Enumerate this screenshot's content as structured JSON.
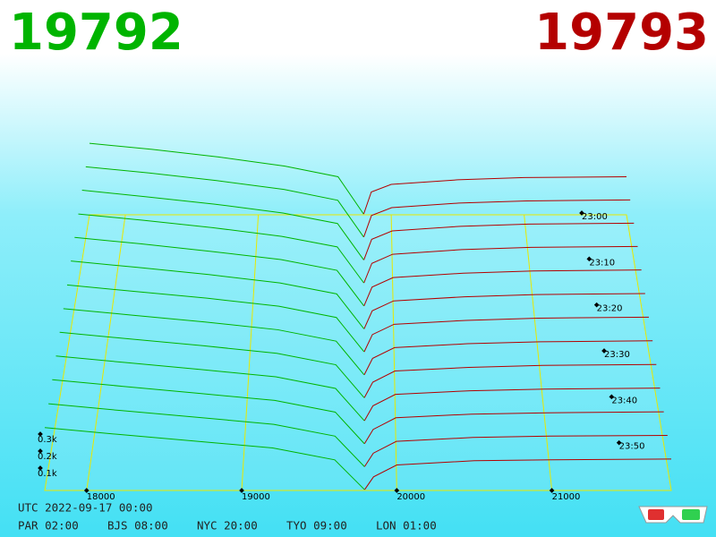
{
  "chart_data": {
    "type": "depth3d",
    "bid": 19792,
    "ask": 19793,
    "bid_color": "#00b400",
    "ask_color": "#b40000",
    "utc": "UTC 2022-09-17 00:00",
    "clocks": [
      "PAR 02:00",
      "BJS 08:00",
      "NYC 20:00",
      "TYO 09:00",
      "LON 01:00"
    ],
    "xlim": [
      17730,
      21770
    ],
    "xticks": [
      18000,
      19000,
      20000,
      21000
    ],
    "tlim": [
      0,
      60
    ],
    "tticks": [
      {
        "value": 0,
        "label": "23:00"
      },
      {
        "value": 10,
        "label": "23:10"
      },
      {
        "value": 20,
        "label": "23:20"
      },
      {
        "value": 30,
        "label": "23:30"
      },
      {
        "value": 40,
        "label": "23:40"
      },
      {
        "value": 50,
        "label": "23:50"
      }
    ],
    "zticks": [
      {
        "value": 100,
        "label": "0.1k"
      },
      {
        "value": 200,
        "label": "0.2k"
      },
      {
        "value": 300,
        "label": "0.3k"
      }
    ],
    "bid_prices": [
      17730,
      18200,
      18700,
      19200,
      19600,
      19792
    ],
    "ask_prices": [
      19793,
      19850,
      20000,
      20500,
      21000,
      21770
    ],
    "snapshots": [
      {
        "t": 0,
        "bids": [
          470,
          430,
          380,
          320,
          250,
          5
        ],
        "asks": [
          5,
          150,
          200,
          230,
          245,
          250
        ]
      },
      {
        "t": 5,
        "bids": [
          462,
          422,
          372,
          315,
          244,
          5
        ],
        "asks": [
          5,
          145,
          196,
          226,
          240,
          246
        ]
      },
      {
        "t": 10,
        "bids": [
          455,
          412,
          365,
          308,
          240,
          5
        ],
        "asks": [
          5,
          138,
          192,
          222,
          236,
          242
        ]
      },
      {
        "t": 15,
        "bids": [
          445,
          405,
          358,
          302,
          235,
          5
        ],
        "asks": [
          5,
          130,
          188,
          218,
          232,
          238
        ]
      },
      {
        "t": 20,
        "bids": [
          438,
          398,
          350,
          298,
          230,
          5
        ],
        "asks": [
          5,
          124,
          184,
          212,
          226,
          232
        ]
      },
      {
        "t": 25,
        "bids": [
          430,
          390,
          345,
          293,
          224,
          5
        ],
        "asks": [
          5,
          118,
          180,
          206,
          220,
          226
        ]
      },
      {
        "t": 30,
        "bids": [
          420,
          380,
          338,
          288,
          218,
          5
        ],
        "asks": [
          5,
          112,
          176,
          200,
          214,
          220
        ]
      },
      {
        "t": 35,
        "bids": [
          412,
          372,
          330,
          282,
          212,
          5
        ],
        "asks": [
          5,
          106,
          172,
          196,
          208,
          214
        ]
      },
      {
        "t": 40,
        "bids": [
          404,
          364,
          322,
          276,
          206,
          5
        ],
        "asks": [
          5,
          100,
          168,
          190,
          202,
          208
        ]
      },
      {
        "t": 45,
        "bids": [
          396,
          356,
          314,
          270,
          200,
          5
        ],
        "asks": [
          5,
          95,
          164,
          186,
          196,
          202
        ]
      },
      {
        "t": 50,
        "bids": [
          388,
          348,
          306,
          264,
          194,
          5
        ],
        "asks": [
          5,
          90,
          160,
          182,
          190,
          196
        ]
      },
      {
        "t": 55,
        "bids": [
          378,
          338,
          298,
          256,
          186,
          5
        ],
        "asks": [
          5,
          85,
          155,
          178,
          186,
          190
        ]
      },
      {
        "t": 60,
        "bids": [
          370,
          330,
          290,
          250,
          180,
          5
        ],
        "asks": [
          5,
          80,
          150,
          175,
          180,
          185
        ]
      }
    ]
  }
}
